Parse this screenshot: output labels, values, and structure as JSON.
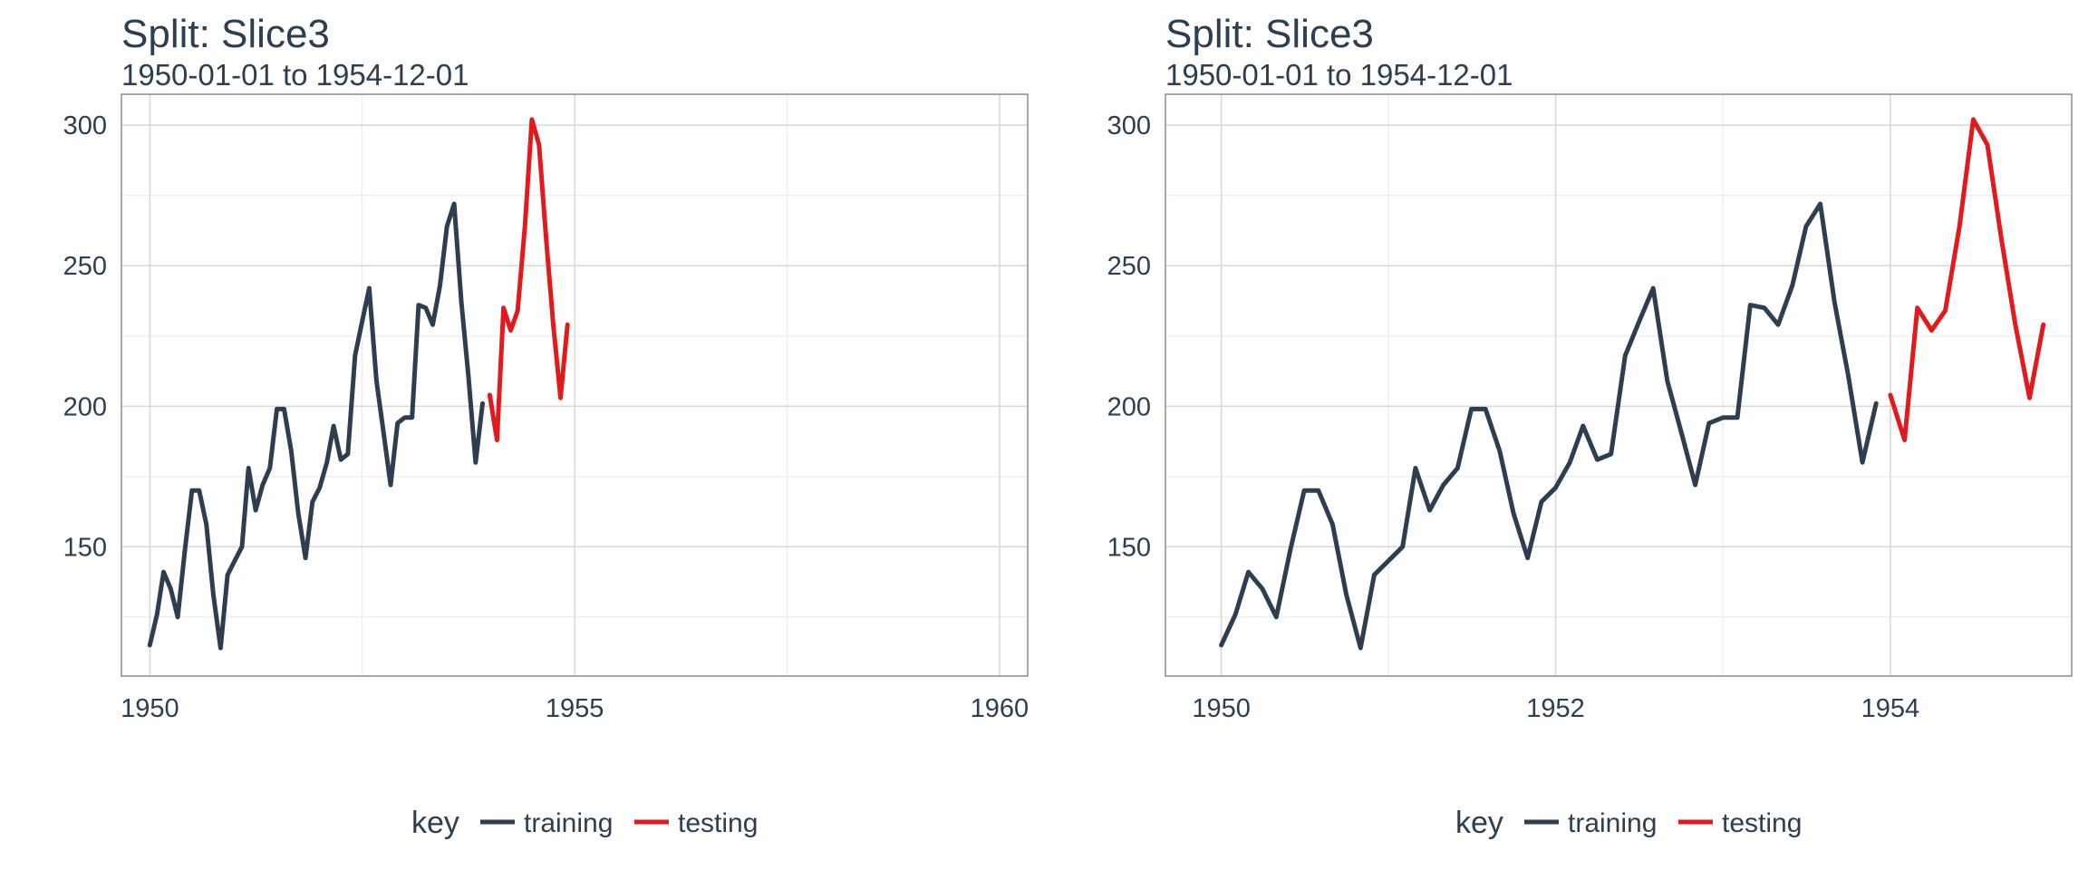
{
  "chart_data": [
    {
      "type": "line",
      "title": "Split: Slice3",
      "subtitle": "1950-01-01 to 1954-12-01",
      "xlabel": "",
      "ylabel": "",
      "xlim": [
        "1949-09-01",
        "1960-05-01"
      ],
      "ylim": [
        104,
        311
      ],
      "x_ticks": [
        {
          "value": "1950-01-01",
          "label": "1950"
        },
        {
          "value": "1955-01-01",
          "label": "1955"
        },
        {
          "value": "1960-01-01",
          "label": "1960"
        }
      ],
      "y_ticks": [
        {
          "value": 150,
          "label": "150"
        },
        {
          "value": 200,
          "label": "200"
        },
        {
          "value": 250,
          "label": "250"
        },
        {
          "value": 300,
          "label": "300"
        }
      ],
      "grid": true,
      "legend_position": "bottom",
      "series": [
        {
          "name": "training",
          "color": "#2c3e50",
          "x": [
            "1950-01-01",
            "1950-02-01",
            "1950-03-01",
            "1950-04-01",
            "1950-05-01",
            "1950-06-01",
            "1950-07-01",
            "1950-08-01",
            "1950-09-01",
            "1950-10-01",
            "1950-11-01",
            "1950-12-01",
            "1951-01-01",
            "1951-02-01",
            "1951-03-01",
            "1951-04-01",
            "1951-05-01",
            "1951-06-01",
            "1951-07-01",
            "1951-08-01",
            "1951-09-01",
            "1951-10-01",
            "1951-11-01",
            "1951-12-01",
            "1952-01-01",
            "1952-02-01",
            "1952-03-01",
            "1952-04-01",
            "1952-05-01",
            "1952-06-01",
            "1952-07-01",
            "1952-08-01",
            "1952-09-01",
            "1952-10-01",
            "1952-11-01",
            "1952-12-01",
            "1953-01-01",
            "1953-02-01",
            "1953-03-01",
            "1953-04-01",
            "1953-05-01",
            "1953-06-01",
            "1953-07-01",
            "1953-08-01",
            "1953-09-01",
            "1953-10-01",
            "1953-11-01",
            "1953-12-01"
          ],
          "values": [
            115,
            126,
            141,
            135,
            125,
            149,
            170,
            170,
            158,
            133,
            114,
            140,
            145,
            150,
            178,
            163,
            172,
            178,
            199,
            199,
            184,
            162,
            146,
            166,
            171,
            180,
            193,
            181,
            183,
            218,
            230,
            242,
            209,
            191,
            172,
            194,
            196,
            196,
            236,
            235,
            229,
            243,
            264,
            272,
            237,
            211,
            180,
            201
          ]
        },
        {
          "name": "testing",
          "color": "#e31a1c",
          "x": [
            "1954-01-01",
            "1954-02-01",
            "1954-03-01",
            "1954-04-01",
            "1954-05-01",
            "1954-06-01",
            "1954-07-01",
            "1954-08-01",
            "1954-09-01",
            "1954-10-01",
            "1954-11-01",
            "1954-12-01"
          ],
          "values": [
            204,
            188,
            235,
            227,
            234,
            264,
            302,
            293,
            259,
            229,
            203,
            229
          ]
        }
      ]
    },
    {
      "type": "line",
      "title": "Split: Slice3",
      "subtitle": "1950-01-01 to 1954-12-01",
      "xlabel": "",
      "ylabel": "",
      "xlim": [
        "1949-09-01",
        "1955-02-01"
      ],
      "ylim": [
        104,
        311
      ],
      "x_ticks": [
        {
          "value": "1950-01-01",
          "label": "1950"
        },
        {
          "value": "1952-01-01",
          "label": "1952"
        },
        {
          "value": "1954-01-01",
          "label": "1954"
        }
      ],
      "y_ticks": [
        {
          "value": 150,
          "label": "150"
        },
        {
          "value": 200,
          "label": "200"
        },
        {
          "value": 250,
          "label": "250"
        },
        {
          "value": 300,
          "label": "300"
        }
      ],
      "grid": true,
      "legend_position": "bottom",
      "series": [
        {
          "name": "training",
          "color": "#2c3e50",
          "x": [
            "1950-01-01",
            "1950-02-01",
            "1950-03-01",
            "1950-04-01",
            "1950-05-01",
            "1950-06-01",
            "1950-07-01",
            "1950-08-01",
            "1950-09-01",
            "1950-10-01",
            "1950-11-01",
            "1950-12-01",
            "1951-01-01",
            "1951-02-01",
            "1951-03-01",
            "1951-04-01",
            "1951-05-01",
            "1951-06-01",
            "1951-07-01",
            "1951-08-01",
            "1951-09-01",
            "1951-10-01",
            "1951-11-01",
            "1951-12-01",
            "1952-01-01",
            "1952-02-01",
            "1952-03-01",
            "1952-04-01",
            "1952-05-01",
            "1952-06-01",
            "1952-07-01",
            "1952-08-01",
            "1952-09-01",
            "1952-10-01",
            "1952-11-01",
            "1952-12-01",
            "1953-01-01",
            "1953-02-01",
            "1953-03-01",
            "1953-04-01",
            "1953-05-01",
            "1953-06-01",
            "1953-07-01",
            "1953-08-01",
            "1953-09-01",
            "1953-10-01",
            "1953-11-01",
            "1953-12-01"
          ],
          "values": [
            115,
            126,
            141,
            135,
            125,
            149,
            170,
            170,
            158,
            133,
            114,
            140,
            145,
            150,
            178,
            163,
            172,
            178,
            199,
            199,
            184,
            162,
            146,
            166,
            171,
            180,
            193,
            181,
            183,
            218,
            230,
            242,
            209,
            191,
            172,
            194,
            196,
            196,
            236,
            235,
            229,
            243,
            264,
            272,
            237,
            211,
            180,
            201
          ]
        },
        {
          "name": "testing",
          "color": "#e31a1c",
          "x": [
            "1954-01-01",
            "1954-02-01",
            "1954-03-01",
            "1954-04-01",
            "1954-05-01",
            "1954-06-01",
            "1954-07-01",
            "1954-08-01",
            "1954-09-01",
            "1954-10-01",
            "1954-11-01",
            "1954-12-01"
          ],
          "values": [
            204,
            188,
            235,
            227,
            234,
            264,
            302,
            293,
            259,
            229,
            203,
            229
          ]
        }
      ]
    }
  ],
  "legend": {
    "title": "key",
    "items": [
      {
        "label": "training",
        "color": "#2c3e50"
      },
      {
        "label": "testing",
        "color": "#e31a1c"
      }
    ]
  }
}
